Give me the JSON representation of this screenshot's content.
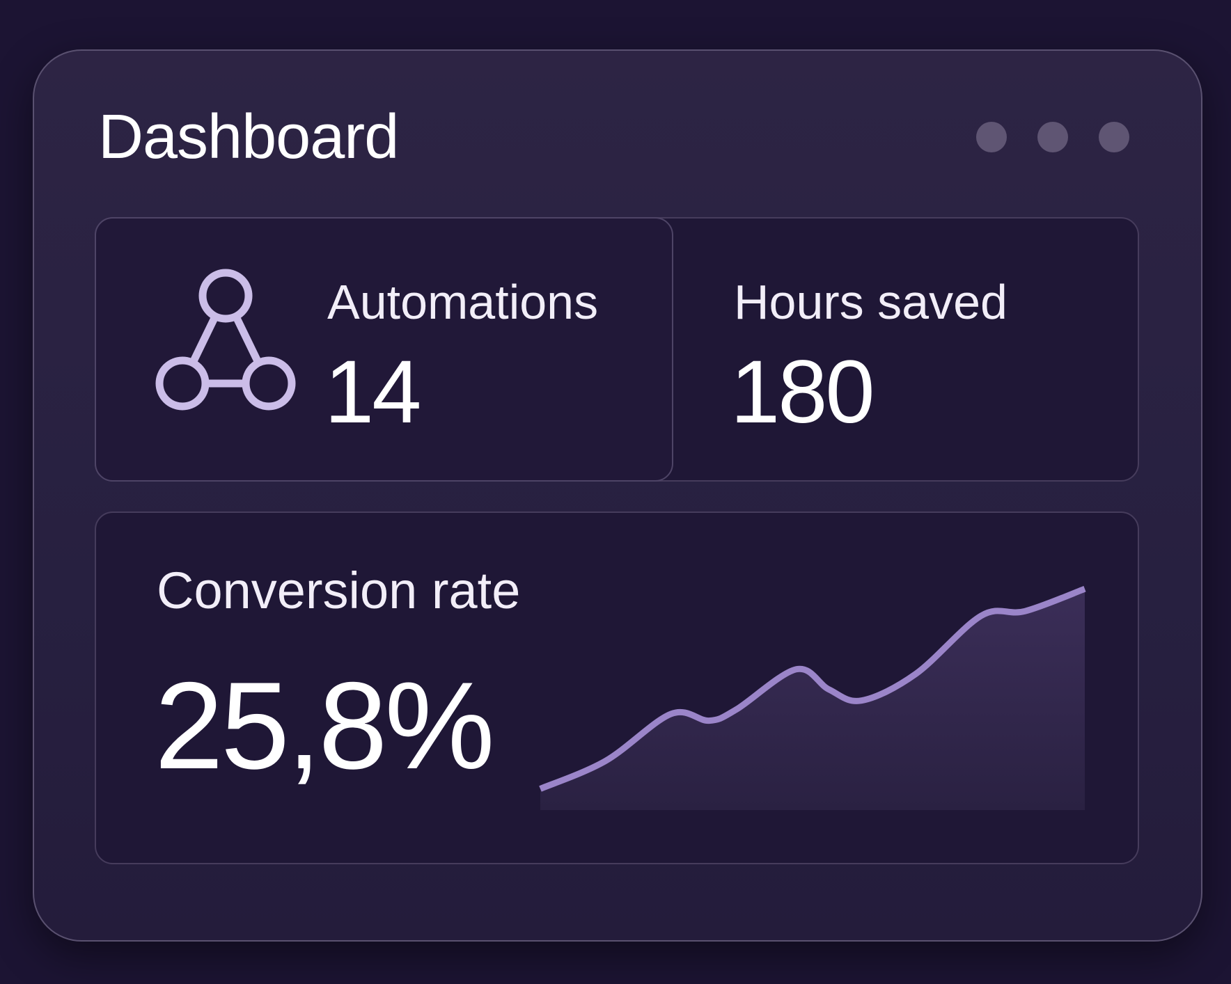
{
  "header": {
    "title": "Dashboard",
    "menu_dots_icon": "more-dots-icon"
  },
  "stats": [
    {
      "label": "Automations",
      "value": "14",
      "icon": "network-nodes-icon"
    },
    {
      "label": "Hours saved",
      "value": "180"
    }
  ],
  "conversion": {
    "label": "Conversion rate",
    "value": "25,8%"
  },
  "colors": {
    "background": "#1c1433",
    "panel": "#1f1736",
    "line": "#9b85c9",
    "icon": "#cbbde8"
  },
  "chart_data": {
    "type": "area",
    "title": "",
    "xlabel": "",
    "ylabel": "",
    "axes_visible": false,
    "grid": false,
    "x": [
      0,
      12,
      24,
      31,
      36,
      47,
      53,
      59,
      69,
      81,
      89,
      100
    ],
    "values": [
      9.5,
      22,
      43,
      40,
      45,
      63,
      54,
      49,
      61,
      87,
      89,
      99
    ],
    "ylim": [
      0,
      100
    ]
  }
}
